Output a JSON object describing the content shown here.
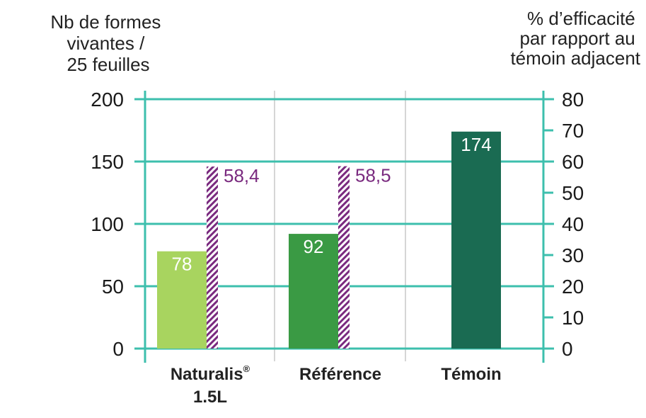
{
  "chart_data": {
    "type": "bar",
    "left_axis_title": [
      "Nb de formes",
      "vivantes /",
      "25 feuilles"
    ],
    "right_axis_title": [
      "% d’efficacité",
      "par rapport au",
      "témoin adjacent"
    ],
    "left_ticks": [
      "0",
      "50",
      "100",
      "150",
      "200"
    ],
    "right_ticks": [
      "0",
      "10",
      "20",
      "30",
      "40",
      "50",
      "60",
      "70",
      "80"
    ],
    "left_ylim": [
      0,
      200
    ],
    "right_ylim": [
      0,
      80
    ],
    "grid": true,
    "categories": [
      {
        "label": "Naturalis",
        "superscript": "®",
        "label_line2": "1.5L"
      },
      {
        "label": "Référence",
        "superscript": "",
        "label_line2": ""
      },
      {
        "label": "Témoin",
        "superscript": "",
        "label_line2": ""
      }
    ],
    "series": [
      {
        "axis": "left",
        "values": [
          78,
          92,
          174
        ],
        "labels": [
          "78",
          "92",
          "174"
        ],
        "colors": [
          "#a8d45f",
          "#3a9a44",
          "#1a6b52"
        ]
      },
      {
        "axis": "right",
        "values": [
          58.4,
          58.5,
          null
        ],
        "labels": [
          "58,4",
          "58,5",
          ""
        ],
        "color": "#7a2a7f",
        "pattern": "hatched"
      }
    ]
  },
  "colors": {
    "grid_teal": "#3dbfad",
    "separator_gray": "#c8c8c8",
    "hatch_purple": "#7a2a7f"
  }
}
